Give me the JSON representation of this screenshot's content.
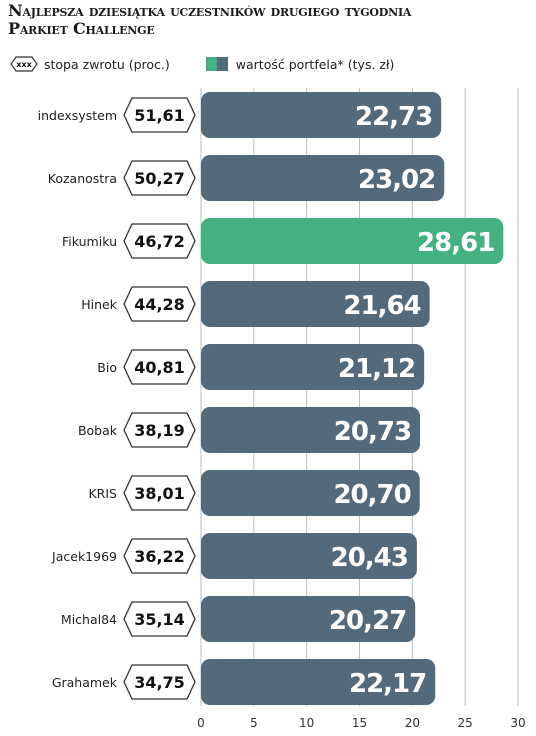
{
  "title_line1": "Najlepsza dziesiątka uczestników drugiego tygodnia",
  "title_line2": "Parkiet Challenge",
  "legend": {
    "hex_glyph": "xxx",
    "return_label": "stopa zwrotu (proc.)",
    "value_label": "wartość portfela* (tys. zł)"
  },
  "colors": {
    "bar": "#536a7d",
    "highlight": "#43b27f",
    "grid": "#b8bec4",
    "hex_stroke": "#333333"
  },
  "chart_data": {
    "type": "bar",
    "orientation": "horizontal",
    "title": "Najlepsza dziesiątka uczestników drugiego tygodnia Parkiet Challenge",
    "categories": [
      "indexsystem",
      "Kozanostra",
      "Fikumiku",
      "Hinek",
      "Bio",
      "Bobak",
      "KRIS",
      "Jacek1969",
      "Michal84",
      "Grahamek"
    ],
    "series": [
      {
        "name": "wartość portfela* (tys. zł)",
        "values": [
          22.73,
          23.02,
          28.61,
          21.64,
          21.12,
          20.73,
          20.7,
          20.43,
          20.27,
          22.17
        ],
        "labels": [
          "22,73",
          "23,02",
          "28,61",
          "21,64",
          "21,12",
          "20,73",
          "20,70",
          "20,43",
          "20,27",
          "22,17"
        ]
      },
      {
        "name": "stopa zwrotu (proc.)",
        "values": [
          51.61,
          50.27,
          46.72,
          44.28,
          40.81,
          38.19,
          38.01,
          36.22,
          35.14,
          34.75
        ],
        "labels": [
          "51,61",
          "50,27",
          "46,72",
          "44,28",
          "40,81",
          "38,19",
          "38,01",
          "36,22",
          "35,14",
          "34,75"
        ]
      }
    ],
    "highlight_index": 2,
    "xlim": [
      0,
      30
    ],
    "xticks": [
      0,
      5,
      10,
      15,
      20,
      25,
      30
    ],
    "grid": true
  }
}
